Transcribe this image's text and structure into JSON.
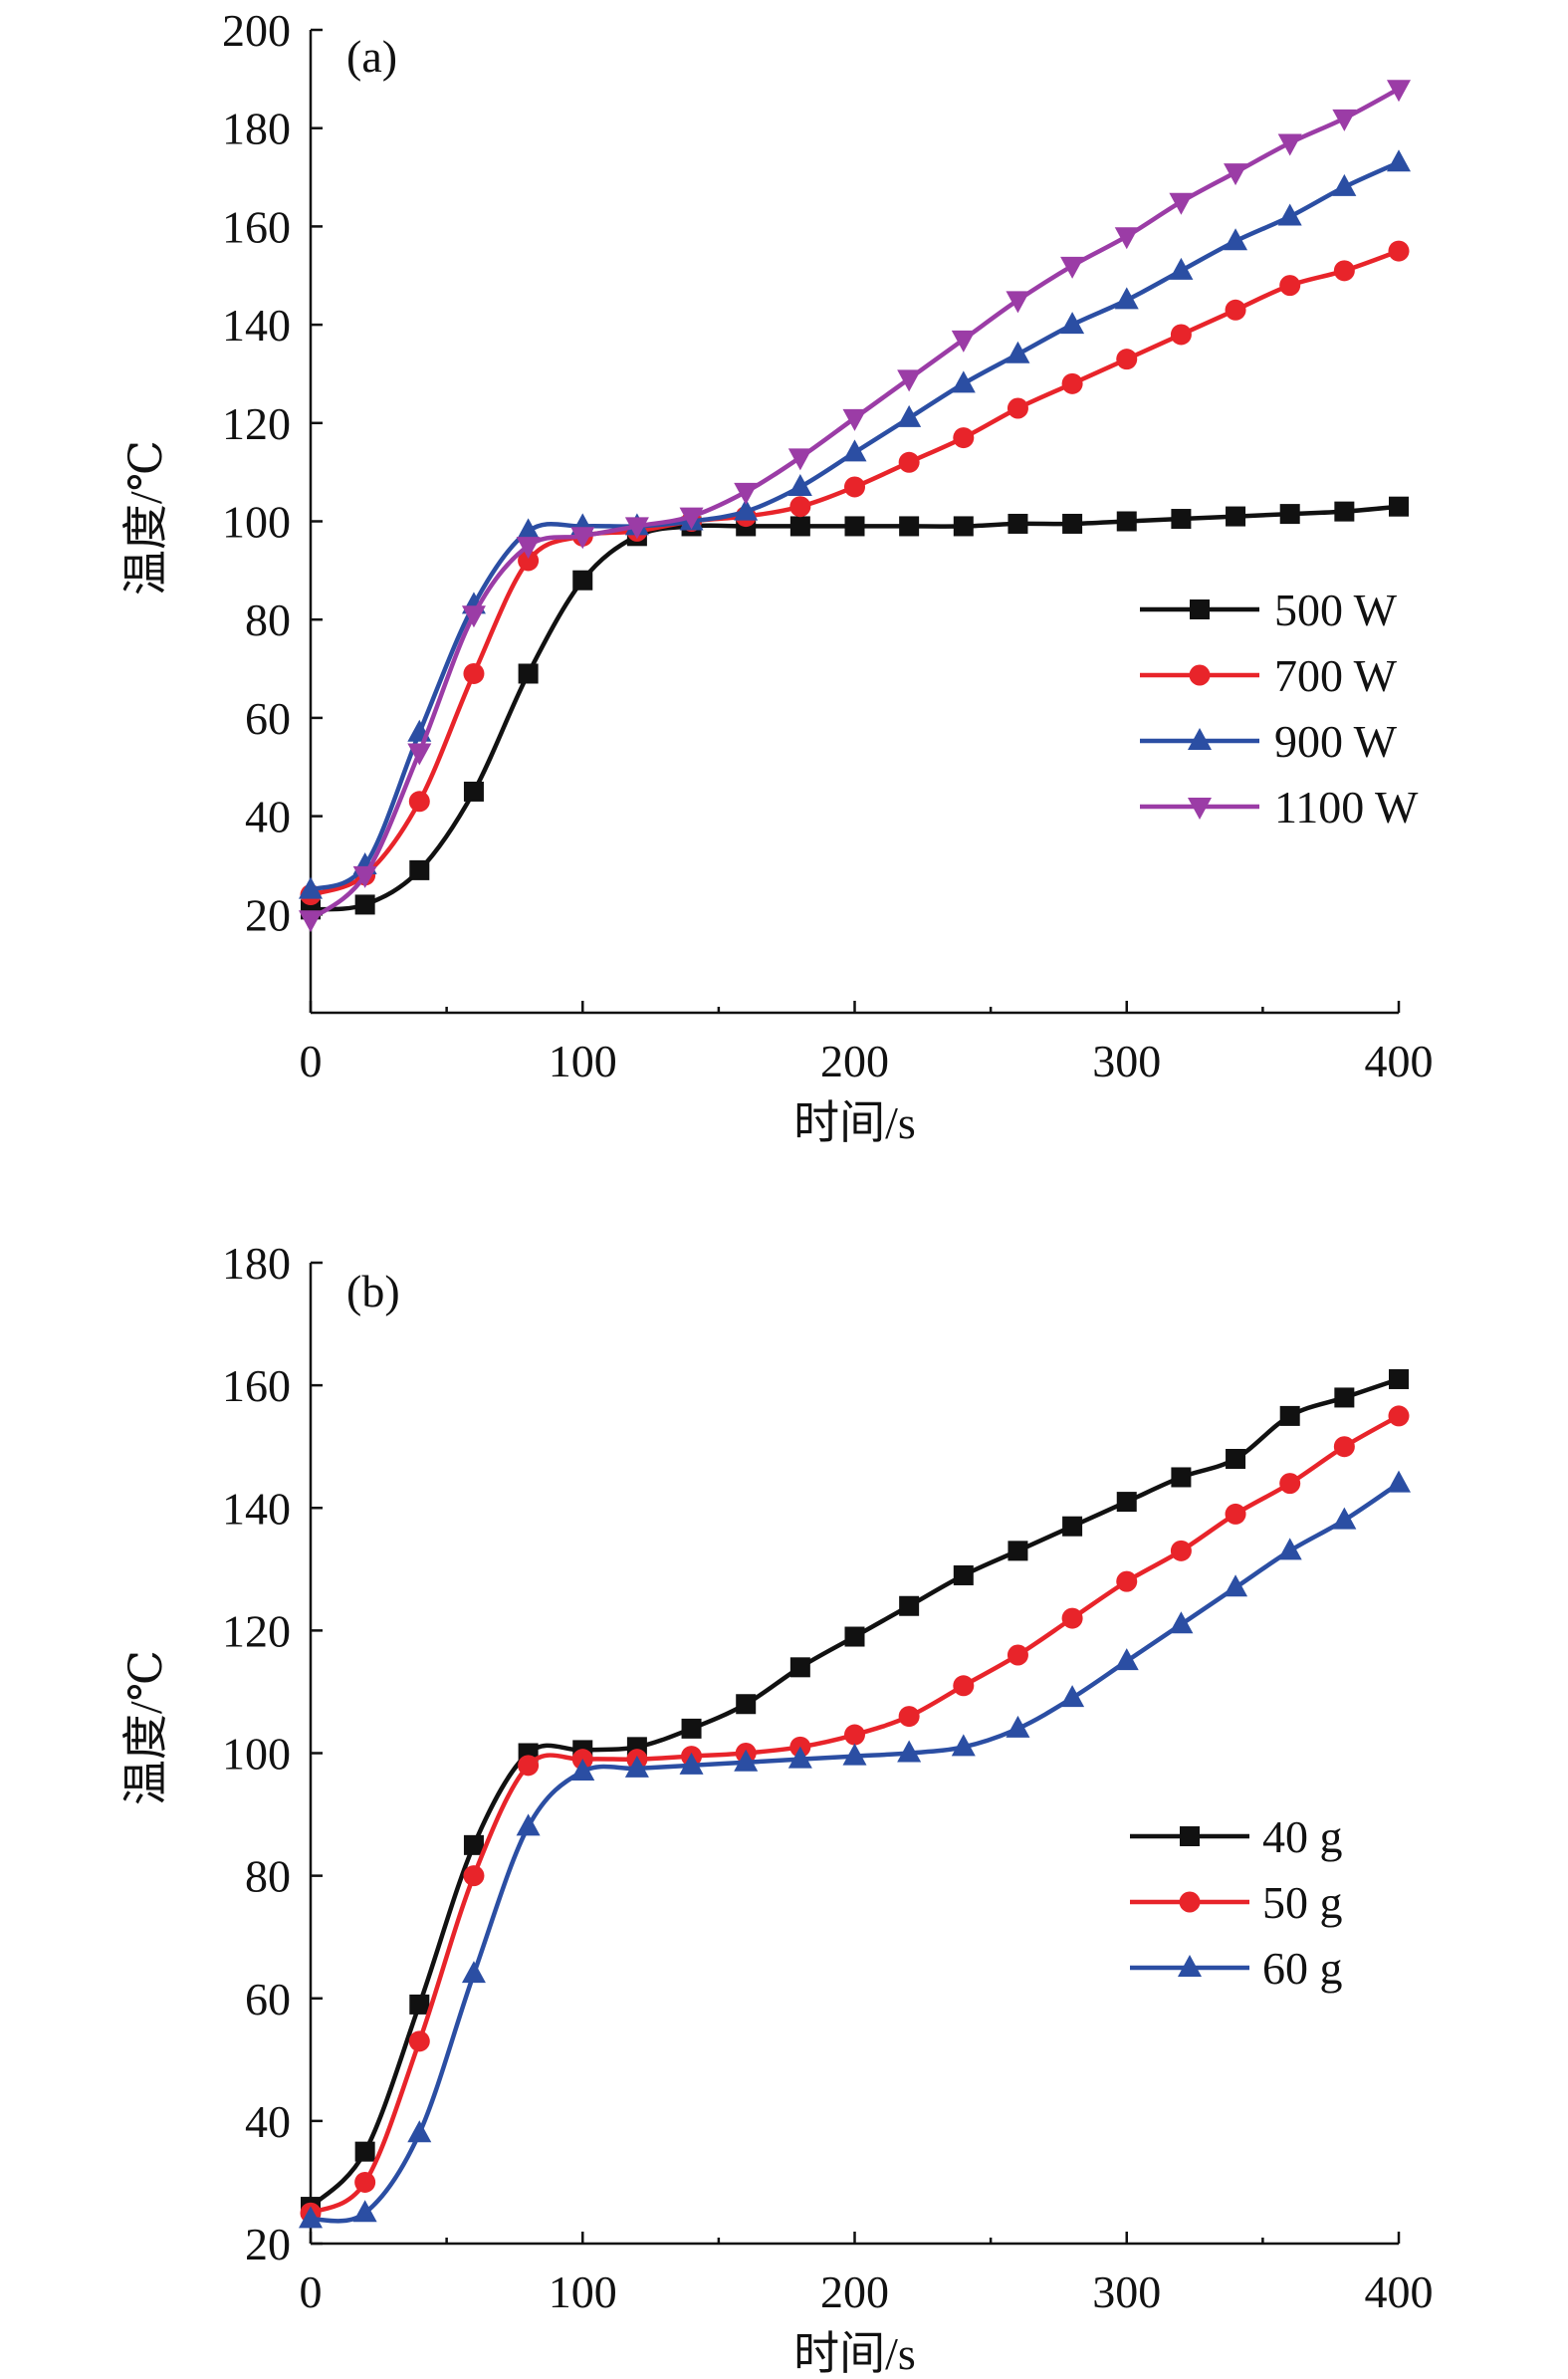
{
  "chart_data": [
    {
      "type": "line",
      "panel_label": "(a)",
      "xlabel": "时间/s",
      "ylabel": "温度/℃",
      "xlim": [
        0,
        400
      ],
      "ylim": [
        0,
        200
      ],
      "xticks": [
        0,
        100,
        200,
        300,
        400
      ],
      "yticks": [
        20,
        40,
        60,
        80,
        100,
        120,
        140,
        160,
        180,
        200
      ],
      "grid": false,
      "legend_position": "right-middle",
      "x": [
        0,
        20,
        40,
        60,
        80,
        100,
        120,
        140,
        160,
        180,
        200,
        220,
        240,
        260,
        280,
        300,
        320,
        340,
        360,
        380,
        400
      ],
      "series": [
        {
          "name": "500 W",
          "color": "#111111",
          "marker": "square",
          "values": [
            21,
            22,
            29,
            45,
            69,
            88,
            97,
            99,
            99,
            99,
            99,
            99,
            99,
            99.5,
            99.5,
            100,
            100.5,
            101,
            101.5,
            102,
            103
          ]
        },
        {
          "name": "700 W",
          "color": "#e8242a",
          "marker": "circle",
          "values": [
            24,
            28,
            43,
            69,
            92,
            97,
            98,
            100,
            101,
            103,
            107,
            112,
            117,
            123,
            128,
            133,
            138,
            143,
            148,
            151,
            155
          ]
        },
        {
          "name": "900 W",
          "color": "#2b4ea3",
          "marker": "triangle-up",
          "values": [
            25,
            30,
            57,
            83,
            98,
            99,
            99,
            100,
            102,
            107,
            114,
            121,
            128,
            134,
            140,
            145,
            151,
            157,
            162,
            168,
            173
          ]
        },
        {
          "name": "1100 W",
          "color": "#9b3ca6",
          "marker": "triangle-down",
          "values": [
            19,
            28,
            53,
            81,
            95,
            97,
            99,
            101,
            106,
            113,
            121,
            129,
            137,
            145,
            152,
            158,
            165,
            171,
            177,
            182,
            188
          ]
        }
      ]
    },
    {
      "type": "line",
      "panel_label": "(b)",
      "xlabel": "时间/s",
      "ylabel": "温度/℃",
      "xlim": [
        0,
        400
      ],
      "ylim": [
        20,
        180
      ],
      "xticks": [
        0,
        100,
        200,
        300,
        400
      ],
      "yticks": [
        20,
        40,
        60,
        80,
        100,
        120,
        140,
        160,
        180
      ],
      "grid": false,
      "legend_position": "right-middle",
      "x": [
        0,
        20,
        40,
        60,
        80,
        100,
        120,
        140,
        160,
        180,
        200,
        220,
        240,
        260,
        280,
        300,
        320,
        340,
        360,
        380,
        400
      ],
      "series": [
        {
          "name": "40 g",
          "color": "#111111",
          "marker": "square",
          "values": [
            26,
            35,
            59,
            85,
            100,
            100.5,
            101,
            104,
            108,
            114,
            119,
            124,
            129,
            133,
            137,
            141,
            145,
            148,
            155,
            158,
            161
          ]
        },
        {
          "name": "50 g",
          "color": "#e8242a",
          "marker": "circle",
          "values": [
            25,
            30,
            53,
            80,
            98,
            99,
            99,
            99.5,
            100,
            101,
            103,
            106,
            111,
            116,
            122,
            128,
            133,
            139,
            144,
            150,
            155
          ]
        },
        {
          "name": "60 g",
          "color": "#2b4ea3",
          "marker": "triangle-up",
          "values": [
            24,
            25,
            38,
            64,
            88,
            97,
            97.5,
            98,
            98.5,
            99,
            99.5,
            100,
            101,
            104,
            109,
            115,
            121,
            127,
            133,
            138,
            144
          ]
        }
      ]
    }
  ]
}
